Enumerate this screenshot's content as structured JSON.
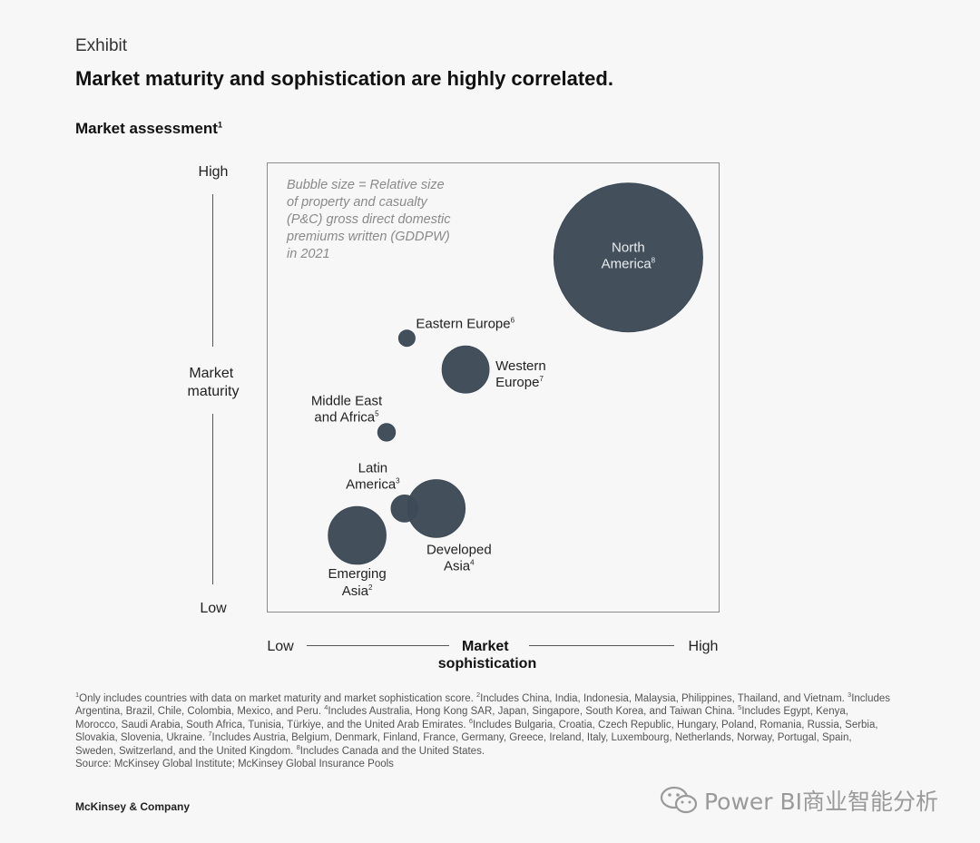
{
  "exhibit": "Exhibit",
  "headline": "Market maturity and sophistication are highly correlated.",
  "subtitle": "Market assessment",
  "subtitle_note": "1",
  "chart_data": {
    "type": "bubble",
    "title": "Market assessment",
    "ylabel": [
      "Market",
      "maturity"
    ],
    "xlabel": [
      "Market",
      "sophistication"
    ],
    "y_low": "Low",
    "y_high": "High",
    "x_low": "Low",
    "x_high": "High",
    "xlim": [
      0,
      100
    ],
    "ylim": [
      0,
      100
    ],
    "bubble_note": [
      "Bubble size = Relative size",
      "of property and casualty",
      "(P&C) gross direct domestic",
      "premiums written (GDDPW)",
      "in 2021"
    ],
    "bubble_color": "#3d4a57",
    "points": [
      {
        "name": "north-america",
        "label": [
          "North",
          "America"
        ],
        "sup": "8",
        "x": 80,
        "y": 79,
        "size": 100
      },
      {
        "name": "eastern-europe",
        "label": [
          "Eastern Europe"
        ],
        "sup": "6",
        "x": 31,
        "y": 61,
        "size": 1.2
      },
      {
        "name": "western-europe",
        "label": [
          "Western",
          "Europe"
        ],
        "sup": "7",
        "x": 44,
        "y": 54,
        "size": 10
      },
      {
        "name": "middle-east-africa",
        "label": [
          "Middle East",
          "and Africa"
        ],
        "sup": "5",
        "x": 26.5,
        "y": 40,
        "size": 1.4
      },
      {
        "name": "latin-america",
        "label": [
          "Latin",
          "America"
        ],
        "sup": "3",
        "x": 30.5,
        "y": 23,
        "size": 3.3
      },
      {
        "name": "developed-asia",
        "label": [
          "Developed",
          "Asia"
        ],
        "sup": "4",
        "x": 37.5,
        "y": 23,
        "size": 15
      },
      {
        "name": "emerging-asia",
        "label": [
          "Emerging",
          "Asia"
        ],
        "sup": "2",
        "x": 20,
        "y": 17,
        "size": 15
      }
    ]
  },
  "footnotes": [
    {
      "sup": "1",
      "text": "Only includes countries with data on market maturity and market sophistication score. "
    },
    {
      "sup": "2",
      "text": "Includes China, India, Indonesia, Malaysia, Philippines, Thailand, and Vietnam. "
    },
    {
      "sup": "3",
      "text": "Includes Argentina, Brazil, Chile, Colombia, Mexico, and Peru. "
    },
    {
      "sup": "4",
      "text": "Includes Australia, Hong Kong SAR, Japan, Singapore, South Korea, and Taiwan China. "
    },
    {
      "sup": "5",
      "text": "Includes Egypt, Kenya, Morocco, Saudi Arabia, South Africa, Tunisia, Türkiye, and the United Arab Emirates. "
    },
    {
      "sup": "6",
      "text": "Includes Bulgaria, Croatia, Czech Republic, Hungary, Poland, Romania, Russia, Serbia, Slovakia, Slovenia, Ukraine. "
    },
    {
      "sup": "7",
      "text": "Includes Austria, Belgium, Denmark, Finland, France, Germany, Greece, Ireland, Italy, Luxembourg, Netherlands, Norway, Portugal, Spain, Sweden, Switzerland, and the United Kingdom. "
    },
    {
      "sup": "8",
      "text": "Includes Canada and the United States."
    }
  ],
  "source": "Source: McKinsey Global Institute; McKinsey Global Insurance Pools",
  "brand": "McKinsey & Company",
  "watermark": "Power BI商业智能分析",
  "watermark_icon": "wechat-icon"
}
